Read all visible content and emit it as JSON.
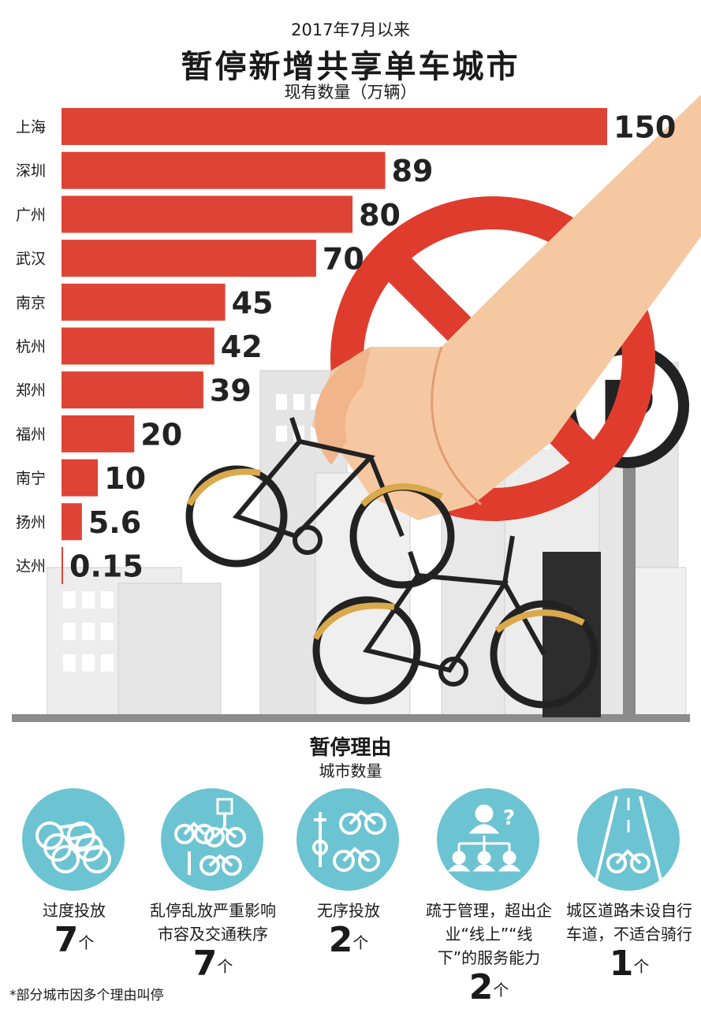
{
  "header": {
    "subtitle": "2017年7月以来",
    "title": "暂停新增共享单车城市",
    "unit": "现有数量（万辆）"
  },
  "chart_data": {
    "type": "bar",
    "orientation": "horizontal",
    "title": "暂停新增共享单车城市",
    "subtitle": "2017年7月以来",
    "ylabel": "现有数量（万辆）",
    "categories": [
      "上海",
      "深圳",
      "广州",
      "武汉",
      "南京",
      "杭州",
      "郑州",
      "福州",
      "南宁",
      "扬州",
      "达州"
    ],
    "values": [
      150,
      89,
      80,
      70,
      45,
      42,
      39,
      20,
      10,
      5.6,
      0.15
    ],
    "value_labels": [
      "150",
      "89",
      "80",
      "70",
      "45",
      "42",
      "39",
      "20",
      "10",
      "5.6",
      "0.15"
    ],
    "xlim": [
      0,
      150
    ],
    "bar_color": "#de4435",
    "grid": false
  },
  "sign": {
    "parking_letter": "P"
  },
  "reasons": {
    "title": "暂停理由",
    "unit": "城市数量",
    "count_unit": "个",
    "circle_color": "#6cc3d2",
    "items": [
      {
        "text": "过度投放",
        "count": "7",
        "icon": "stacked-bikes-icon"
      },
      {
        "text": "乱停乱放严重影响市容及交通秩序",
        "count": "7",
        "icon": "parked-bikes-icon"
      },
      {
        "text": "无序投放",
        "count": "2",
        "icon": "scattered-bikes-icon"
      },
      {
        "text": "疏于管理，超出企业“线上”“线下”的服务能力",
        "count": "2",
        "icon": "management-icon"
      },
      {
        "text": "城区道路未设自行车道，不适合骑行",
        "count": "1",
        "icon": "road-bike-icon"
      }
    ]
  },
  "footnote": "*部分城市因多个理由叫停"
}
